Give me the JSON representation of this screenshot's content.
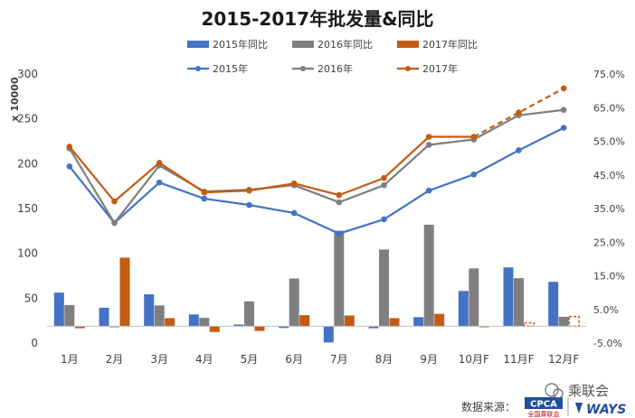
{
  "chart_data": {
    "type": "bar+line",
    "title": "2015-2017年批发量&同比",
    "ylabel_left": "x 10000",
    "categories": [
      "1月",
      "2月",
      "3月",
      "4月",
      "5月",
      "6月",
      "7月",
      "8月",
      "9月",
      "10月F",
      "11月F",
      "12月F"
    ],
    "ylim_left": [
      0,
      300
    ],
    "yticks_left": [
      "0",
      "50",
      "100",
      "150",
      "200",
      "250",
      "300"
    ],
    "ylim_right": [
      -0.05,
      0.75
    ],
    "yticks_right": [
      "-5.0%",
      "5.0%",
      "15.0%",
      "25.0%",
      "35.0%",
      "45.0%",
      "55.0%",
      "65.0%",
      "75.0%"
    ],
    "grid": false,
    "legend_position": "top",
    "bar_series": [
      {
        "name": "2015年同比",
        "color": "#4472C4",
        "axis": "right",
        "values": [
          0.1,
          0.055,
          0.095,
          0.035,
          0.005,
          -0.005,
          -0.048,
          -0.006,
          0.027,
          0.105,
          0.175,
          0.132
        ]
      },
      {
        "name": "2016年同比",
        "color": "#7F7F7F",
        "axis": "right",
        "values": [
          0.063,
          -0.003,
          0.062,
          0.025,
          0.074,
          0.142,
          0.284,
          0.228,
          0.302,
          0.172,
          0.143,
          0.028
        ]
      },
      {
        "name": "2017年同比",
        "color": "#C55A11",
        "axis": "right",
        "values": [
          -0.006,
          0.204,
          0.024,
          -0.017,
          -0.014,
          0.033,
          0.032,
          0.024,
          0.037,
          -0.003,
          0.01,
          0.029
        ],
        "forecast_from_index": 10
      }
    ],
    "line_series": [
      {
        "name": "2015年",
        "color": "#4472C4",
        "axis": "left",
        "values": [
          197,
          134,
          179,
          161,
          154,
          145,
          122,
          138,
          170,
          188,
          215,
          240
        ]
      },
      {
        "name": "2016年",
        "color": "#7F7F7F",
        "axis": "left",
        "values": [
          217,
          134,
          198,
          169,
          171,
          176,
          157,
          176,
          221,
          227,
          254,
          260
        ]
      },
      {
        "name": "2017年",
        "color": "#C55A11",
        "axis": "left",
        "values": [
          219,
          158,
          201,
          168,
          170,
          178,
          165,
          184,
          230,
          230,
          257,
          284
        ],
        "forecast_from_index": 9
      }
    ]
  },
  "footer": {
    "source_label": "数据来源：",
    "logo1_text": "CPCA",
    "logo1_sub": "全国乘联会",
    "logo2_text": "WAYS"
  },
  "watermark": {
    "text": "乘联会"
  }
}
